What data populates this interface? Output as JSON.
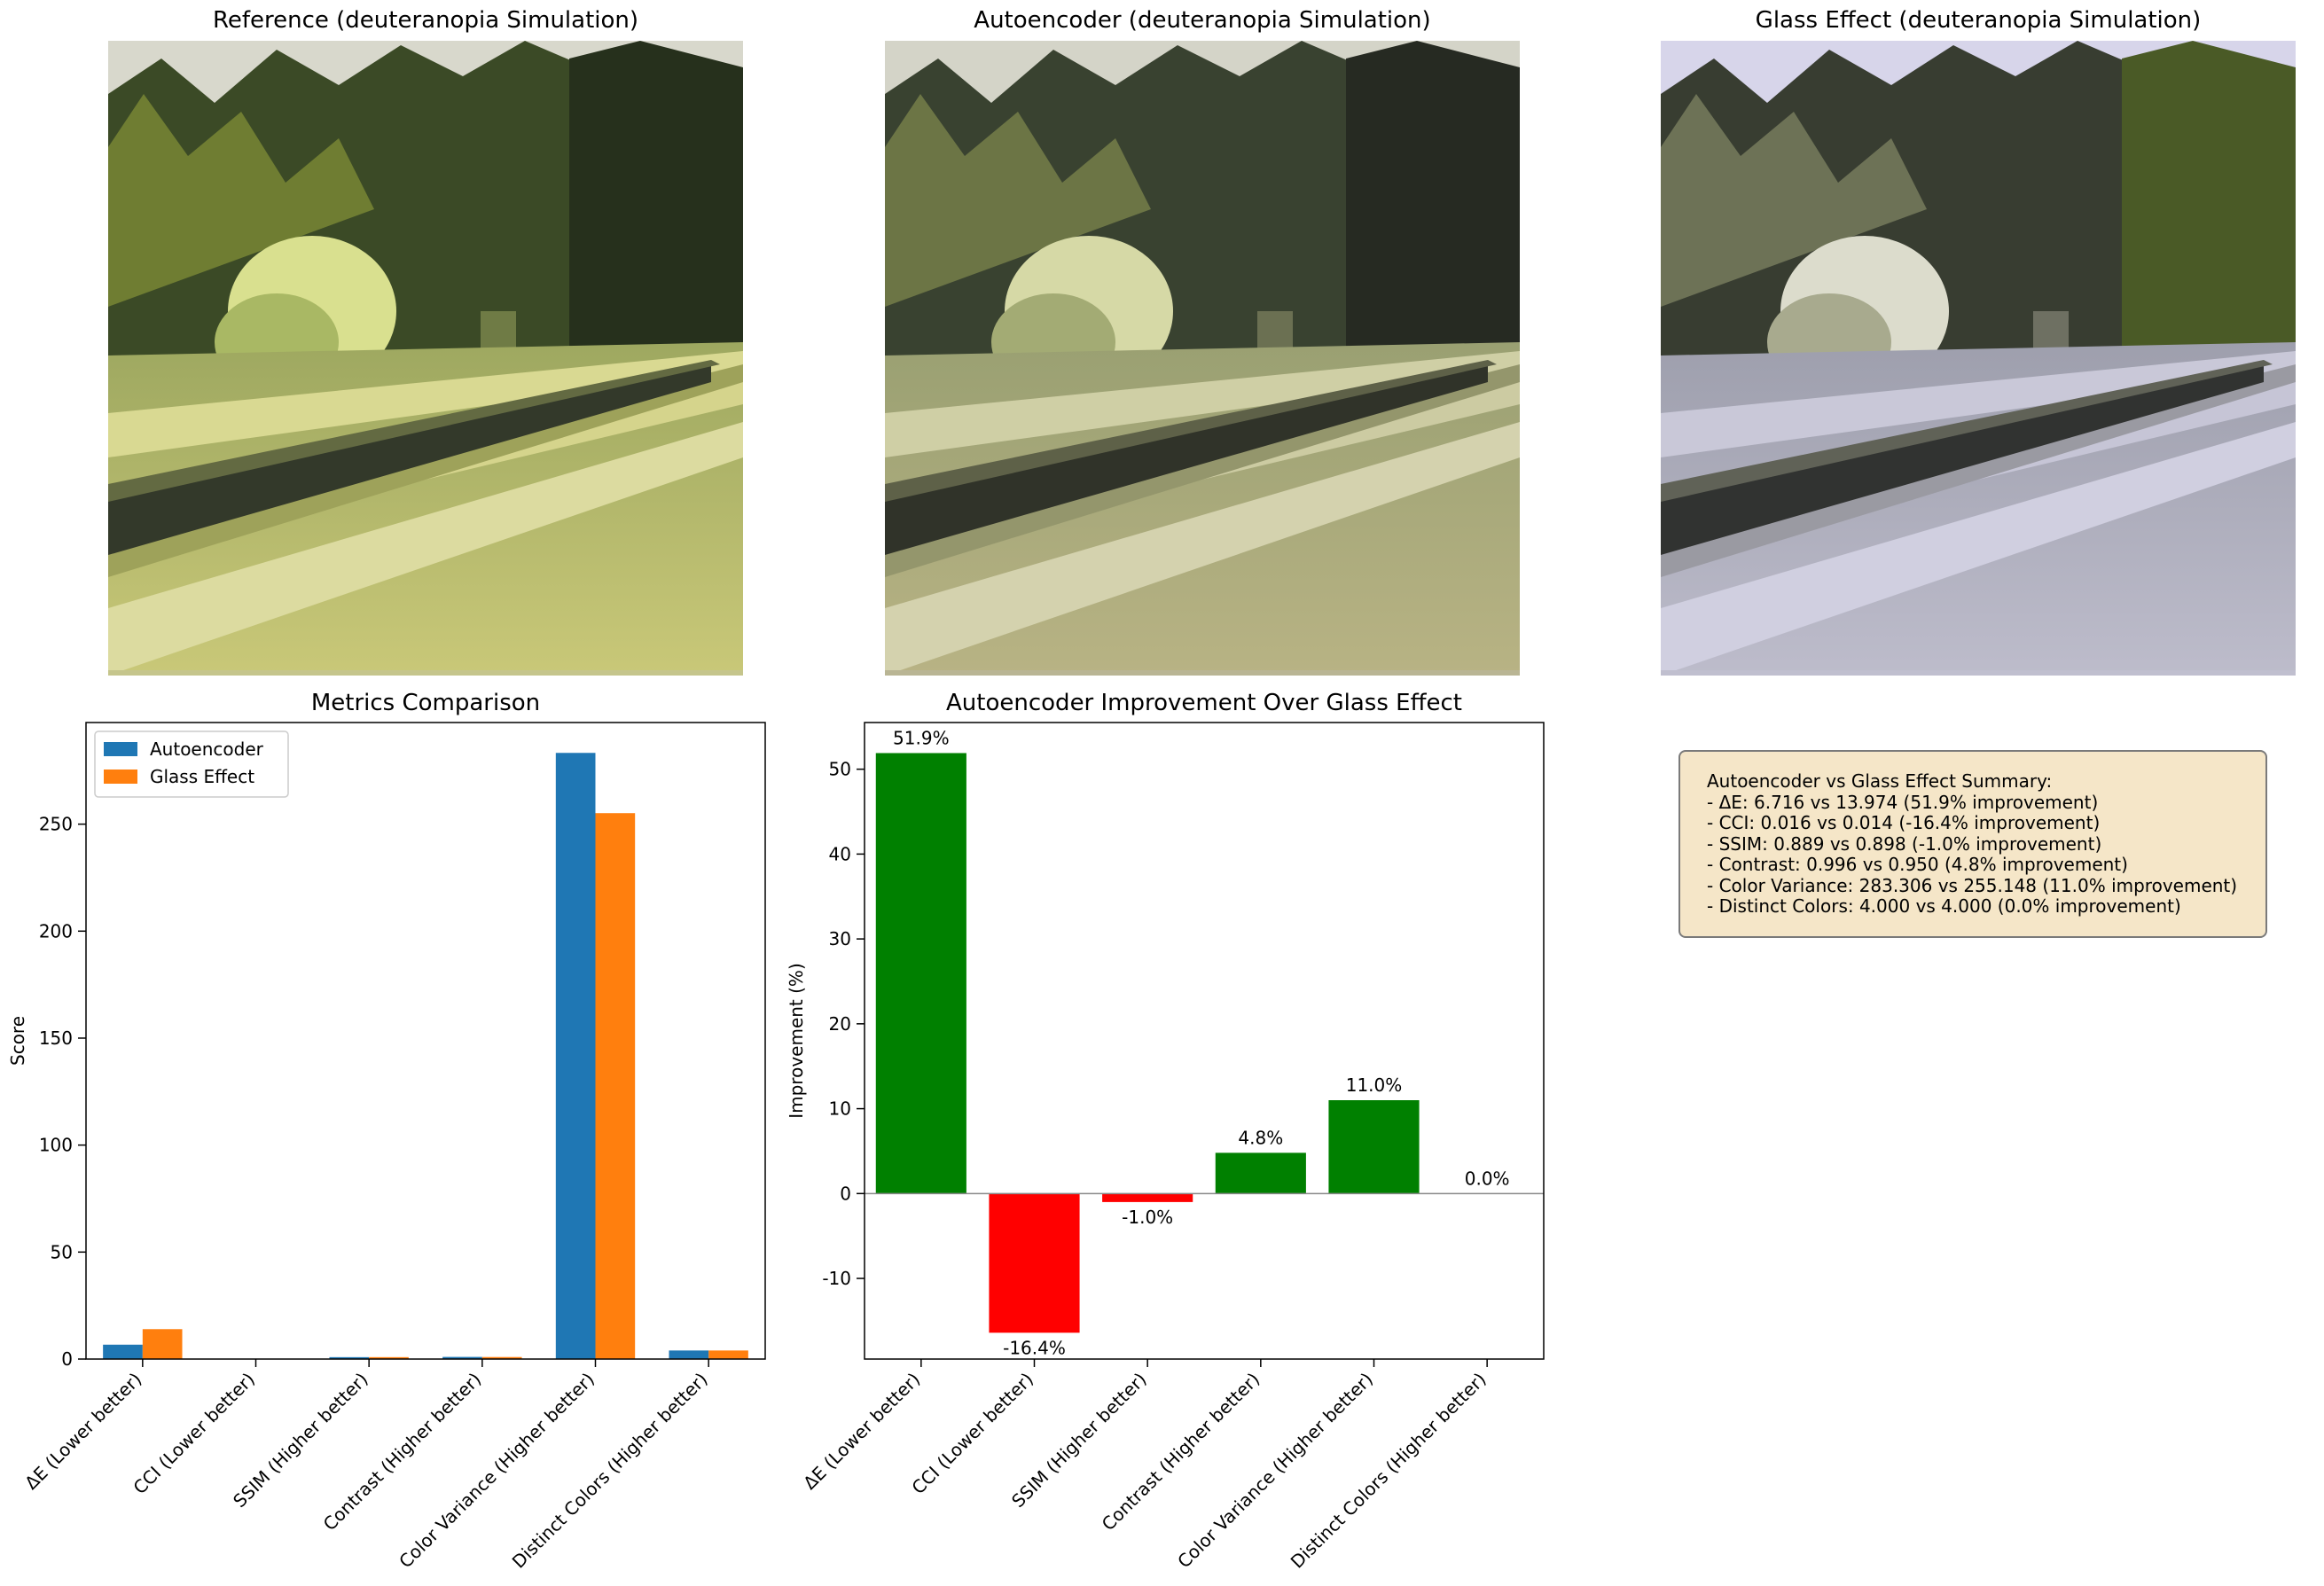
{
  "panels": {
    "reference_title": "Reference (deuteranopia Simulation)",
    "autoencoder_title": "Autoencoder (deuteranopia Simulation)",
    "glass_title": "Glass Effect (deuteranopia Simulation)"
  },
  "chart_data": [
    {
      "type": "bar",
      "title": "Metrics Comparison",
      "xlabel": "",
      "ylabel": "Score",
      "categories": [
        "ΔE (Lower better)",
        "CCI (Lower better)",
        "SSIM (Higher better)",
        "Contrast (Higher better)",
        "Color Variance (Higher better)",
        "Distinct Colors (Higher better)"
      ],
      "series": [
        {
          "name": "Autoencoder",
          "color": "#1f77b4",
          "values": [
            6.716,
            0.016,
            0.889,
            0.996,
            283.306,
            4.0
          ]
        },
        {
          "name": "Glass Effect",
          "color": "#ff7f0e",
          "values": [
            13.974,
            0.014,
            0.898,
            0.95,
            255.148,
            4.0
          ]
        }
      ],
      "ylim": [
        0,
        297.5
      ],
      "yticks": [
        0,
        50,
        100,
        150,
        200,
        250
      ],
      "legend": "top-left",
      "grid": false
    },
    {
      "type": "bar",
      "title": "Autoencoder Improvement Over Glass Effect",
      "xlabel": "",
      "ylabel": "Improvement (%)",
      "categories": [
        "ΔE (Lower better)",
        "CCI (Lower better)",
        "SSIM (Higher better)",
        "Contrast (Higher better)",
        "Color Variance (Higher better)",
        "Distinct Colors (Higher better)"
      ],
      "values": [
        51.9,
        -16.4,
        -1.0,
        4.8,
        11.0,
        0.0
      ],
      "data_labels": [
        "51.9%",
        "-16.4%",
        "-1.0%",
        "4.8%",
        "11.0%",
        "0.0%"
      ],
      "colors": {
        "positive": "#008000",
        "negative": "#ff0000"
      },
      "ylim": [
        -19.5,
        55.5
      ],
      "yticks": [
        -10,
        0,
        10,
        20,
        30,
        40,
        50
      ],
      "zero_line": true,
      "grid": false
    }
  ],
  "summary": {
    "lines": [
      "Autoencoder vs Glass Effect Summary:",
      "- ΔE: 6.716 vs 13.974 (51.9% improvement)",
      "- CCI: 0.016 vs 0.014 (-16.4% improvement)",
      "- SSIM: 0.889 vs 0.898 (-1.0% improvement)",
      "- Contrast: 0.996 vs 0.950 (4.8% improvement)",
      "- Color Variance: 283.306 vs 255.148 (11.0% improvement)",
      "- Distinct Colors: 4.000 vs 4.000 (0.0% improvement)"
    ]
  }
}
